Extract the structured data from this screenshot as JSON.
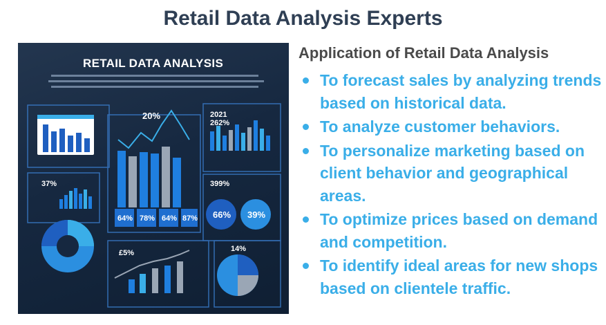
{
  "page": {
    "title": "Retail Data Analysis Experts",
    "subtitle": "Application of Retail Data Analysis",
    "bullets": [
      "To forecast sales by analyzing trends based on historical data.",
      "To analyze customer behaviors.",
      "To personalize marketing based on client behavior  and geographical areas.",
      "To optimize prices based on demand and competition.",
      "To identify ideal areas for new shops based on clientele traffic."
    ]
  },
  "dashboard": {
    "title": "RETAIL DATA ANALYSIS",
    "labels": {
      "center_pct": "20%",
      "year": "2021",
      "right_pct": "262%",
      "left_pct": "37%",
      "right_mid_pct": "399%",
      "bottom_mid_pct": "£5%",
      "bottom_right_pct": "14%"
    },
    "stat_boxes": [
      "64%",
      "78%",
      "64%",
      "87%"
    ],
    "circles": [
      "66%",
      "39%"
    ],
    "colors": {
      "background": "#162840",
      "accent": "#3aaee8",
      "bar_blue": "#1f7fe0",
      "bar_grey": "#9aa6b5"
    }
  }
}
